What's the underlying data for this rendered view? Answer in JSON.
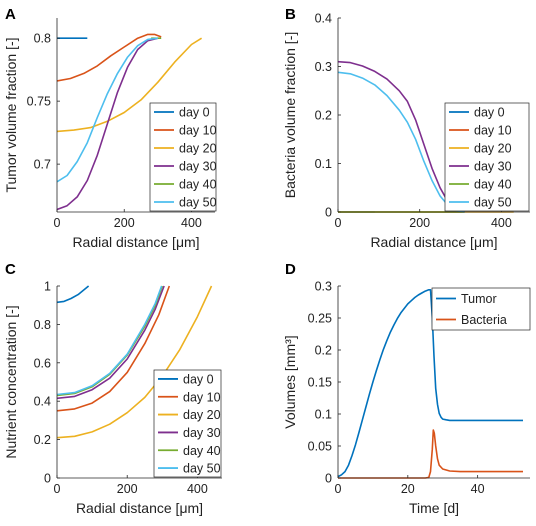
{
  "colors": {
    "day 0": "#0072BD",
    "day 10": "#D95319",
    "day 20": "#EDB120",
    "day 30": "#7E2F8E",
    "day 40": "#77AC30",
    "day 50": "#4DBEEE",
    "Tumor": "#0072BD",
    "Bacteria": "#D95319"
  },
  "chart_data": [
    {
      "panel": "A",
      "type": "line",
      "xlabel": "Radial distance [μm]",
      "ylabel": "Tumor volume fraction [-]",
      "xlim": [
        0,
        470
      ],
      "ylim": [
        0.662,
        0.816
      ],
      "xticks": [
        0,
        200,
        400
      ],
      "xtick_labels": [
        "0",
        "200",
        "400"
      ],
      "yticks": [
        0.7,
        0.75,
        0.8
      ],
      "ytick_labels": [
        "0.7",
        "0.75",
        "0.8"
      ],
      "legend": [
        "day 0",
        "day 10",
        "day 20",
        "day 30",
        "day 40",
        "day 50"
      ],
      "legend_position": "bottom-right",
      "series": [
        {
          "name": "day 0",
          "x": [
            0,
            90
          ],
          "y": [
            0.8,
            0.8
          ]
        },
        {
          "name": "day 10",
          "x": [
            0,
            40,
            80,
            120,
            160,
            200,
            240,
            270,
            290,
            310
          ],
          "y": [
            0.766,
            0.768,
            0.772,
            0.778,
            0.786,
            0.793,
            0.8,
            0.803,
            0.803,
            0.801
          ]
        },
        {
          "name": "day 20",
          "x": [
            0,
            50,
            100,
            150,
            200,
            250,
            300,
            350,
            400,
            430
          ],
          "y": [
            0.726,
            0.727,
            0.729,
            0.734,
            0.741,
            0.751,
            0.765,
            0.781,
            0.795,
            0.8
          ]
        },
        {
          "name": "day 30",
          "x": [
            0,
            30,
            60,
            90,
            120,
            150,
            180,
            210,
            240,
            270,
            300
          ],
          "y": [
            0.664,
            0.667,
            0.674,
            0.687,
            0.707,
            0.732,
            0.757,
            0.777,
            0.791,
            0.798,
            0.8
          ]
        },
        {
          "name": "day 40",
          "x": [
            280,
            310
          ],
          "y": [
            0.8,
            0.8
          ]
        },
        {
          "name": "day 50",
          "x": [
            0,
            30,
            60,
            90,
            120,
            150,
            180,
            210,
            240,
            270,
            300
          ],
          "y": [
            0.686,
            0.691,
            0.702,
            0.717,
            0.737,
            0.756,
            0.772,
            0.785,
            0.794,
            0.799,
            0.8
          ]
        }
      ]
    },
    {
      "panel": "B",
      "type": "line",
      "xlabel": "Radial distance [μm]",
      "ylabel": "Bacteria volume fraction [-]",
      "xlim": [
        0,
        470
      ],
      "ylim": [
        0,
        0.4
      ],
      "xticks": [
        0,
        200,
        400
      ],
      "xtick_labels": [
        "0",
        "200",
        "400"
      ],
      "yticks": [
        0,
        0.1,
        0.2,
        0.3,
        0.4
      ],
      "ytick_labels": [
        "0",
        "0.1",
        "0.2",
        "0.3",
        "0.4"
      ],
      "legend": [
        "day 0",
        "day 10",
        "day 20",
        "day 30",
        "day 40",
        "day 50"
      ],
      "legend_position": "bottom-right",
      "series": [
        {
          "name": "day 0",
          "x": [
            0,
            90
          ],
          "y": [
            0,
            0
          ]
        },
        {
          "name": "day 10",
          "x": [
            0,
            310
          ],
          "y": [
            0,
            0
          ]
        },
        {
          "name": "day 20",
          "x": [
            0,
            430
          ],
          "y": [
            0,
            0
          ]
        },
        {
          "name": "day 30",
          "x": [
            0,
            30,
            60,
            90,
            120,
            150,
            170,
            190,
            210,
            230,
            250,
            270,
            290,
            310
          ],
          "y": [
            0.31,
            0.308,
            0.301,
            0.29,
            0.274,
            0.25,
            0.228,
            0.19,
            0.14,
            0.09,
            0.05,
            0.02,
            0.005,
            0
          ]
        },
        {
          "name": "day 40",
          "x": [
            0,
            310
          ],
          "y": [
            0,
            0
          ]
        },
        {
          "name": "day 50",
          "x": [
            0,
            30,
            60,
            90,
            120,
            150,
            170,
            190,
            210,
            230,
            250,
            270,
            290,
            310
          ],
          "y": [
            0.288,
            0.285,
            0.276,
            0.262,
            0.24,
            0.21,
            0.185,
            0.15,
            0.105,
            0.065,
            0.033,
            0.013,
            0.003,
            0
          ]
        }
      ]
    },
    {
      "panel": "C",
      "type": "line",
      "xlabel": "Radial distance [μm]",
      "ylabel": "Nutrient concentration [-]",
      "xlim": [
        0,
        470
      ],
      "ylim": [
        0,
        1
      ],
      "xticks": [
        0,
        200,
        400
      ],
      "xtick_labels": [
        "0",
        "200",
        "400"
      ],
      "yticks": [
        0,
        0.2,
        0.4,
        0.6,
        0.8,
        1
      ],
      "ytick_labels": [
        "0",
        "0.2",
        "0.4",
        "0.6",
        "0.8",
        "1"
      ],
      "legend": [
        "day 0",
        "day 10",
        "day 20",
        "day 30",
        "day 40",
        "day 50"
      ],
      "legend_position": "bottom-right",
      "series": [
        {
          "name": "day 0",
          "x": [
            0,
            20,
            40,
            60,
            80,
            90
          ],
          "y": [
            0.915,
            0.92,
            0.935,
            0.955,
            0.985,
            1.0
          ]
        },
        {
          "name": "day 10",
          "x": [
            0,
            50,
            100,
            150,
            200,
            250,
            290,
            320
          ],
          "y": [
            0.35,
            0.36,
            0.39,
            0.45,
            0.55,
            0.7,
            0.85,
            1.0
          ]
        },
        {
          "name": "day 20",
          "x": [
            0,
            50,
            100,
            150,
            200,
            250,
            300,
            350,
            400,
            440
          ],
          "y": [
            0.21,
            0.217,
            0.24,
            0.28,
            0.34,
            0.42,
            0.53,
            0.67,
            0.84,
            1.0
          ]
        },
        {
          "name": "day 30",
          "x": [
            0,
            50,
            100,
            150,
            200,
            250,
            280,
            305
          ],
          "y": [
            0.415,
            0.425,
            0.46,
            0.52,
            0.62,
            0.77,
            0.88,
            1.0
          ]
        },
        {
          "name": "day 40",
          "x": [
            0,
            50,
            100,
            150,
            200,
            250,
            280,
            300
          ],
          "y": [
            0.43,
            0.44,
            0.475,
            0.54,
            0.64,
            0.79,
            0.9,
            1.0
          ]
        },
        {
          "name": "day 50",
          "x": [
            0,
            50,
            100,
            150,
            200,
            250,
            280,
            298
          ],
          "y": [
            0.435,
            0.445,
            0.48,
            0.545,
            0.645,
            0.8,
            0.91,
            1.0
          ]
        }
      ]
    },
    {
      "panel": "D",
      "type": "line",
      "xlabel": "Time [d]",
      "ylabel": "Volumes [mm³]",
      "xlim": [
        0,
        55
      ],
      "ylim": [
        0,
        0.3
      ],
      "xticks": [
        0,
        20,
        40
      ],
      "xtick_labels": [
        "0",
        "20",
        "40"
      ],
      "yticks": [
        0,
        0.05,
        0.1,
        0.15,
        0.2,
        0.25,
        0.3
      ],
      "ytick_labels": [
        "0",
        "0.05",
        "0.1",
        "0.15",
        "0.2",
        "0.25",
        "0.3"
      ],
      "legend": [
        "Tumor",
        "Bacteria"
      ],
      "legend_position": "top-right",
      "series": [
        {
          "name": "Tumor",
          "x": [
            0,
            1,
            2,
            3,
            4,
            5,
            6,
            7,
            8,
            9,
            10,
            11,
            12,
            13,
            14,
            15,
            16,
            17,
            18,
            19,
            20,
            21,
            22,
            23,
            24,
            25,
            26,
            26.5,
            27,
            27.5,
            28,
            28.5,
            29,
            29.5,
            30,
            31,
            32,
            34,
            36,
            40,
            45,
            50,
            53
          ],
          "y": [
            0.002,
            0.005,
            0.01,
            0.02,
            0.035,
            0.052,
            0.071,
            0.091,
            0.111,
            0.131,
            0.15,
            0.168,
            0.185,
            0.201,
            0.215,
            0.228,
            0.239,
            0.249,
            0.258,
            0.265,
            0.272,
            0.277,
            0.282,
            0.286,
            0.289,
            0.292,
            0.294,
            0.294,
            0.25,
            0.19,
            0.14,
            0.115,
            0.101,
            0.095,
            0.092,
            0.091,
            0.09,
            0.09,
            0.09,
            0.09,
            0.09,
            0.09,
            0.09
          ]
        },
        {
          "name": "Bacteria",
          "x": [
            0,
            10,
            20,
            25,
            26,
            26.5,
            27,
            27.3,
            27.6,
            28,
            28.5,
            29,
            30,
            32,
            35,
            40,
            53
          ],
          "y": [
            0,
            0,
            0,
            0,
            0.001,
            0.01,
            0.045,
            0.075,
            0.07,
            0.05,
            0.03,
            0.02,
            0.014,
            0.011,
            0.01,
            0.01,
            0.01
          ]
        }
      ]
    }
  ],
  "panels": [
    {
      "label": "A"
    },
    {
      "label": "B"
    },
    {
      "label": "C"
    },
    {
      "label": "D"
    }
  ]
}
